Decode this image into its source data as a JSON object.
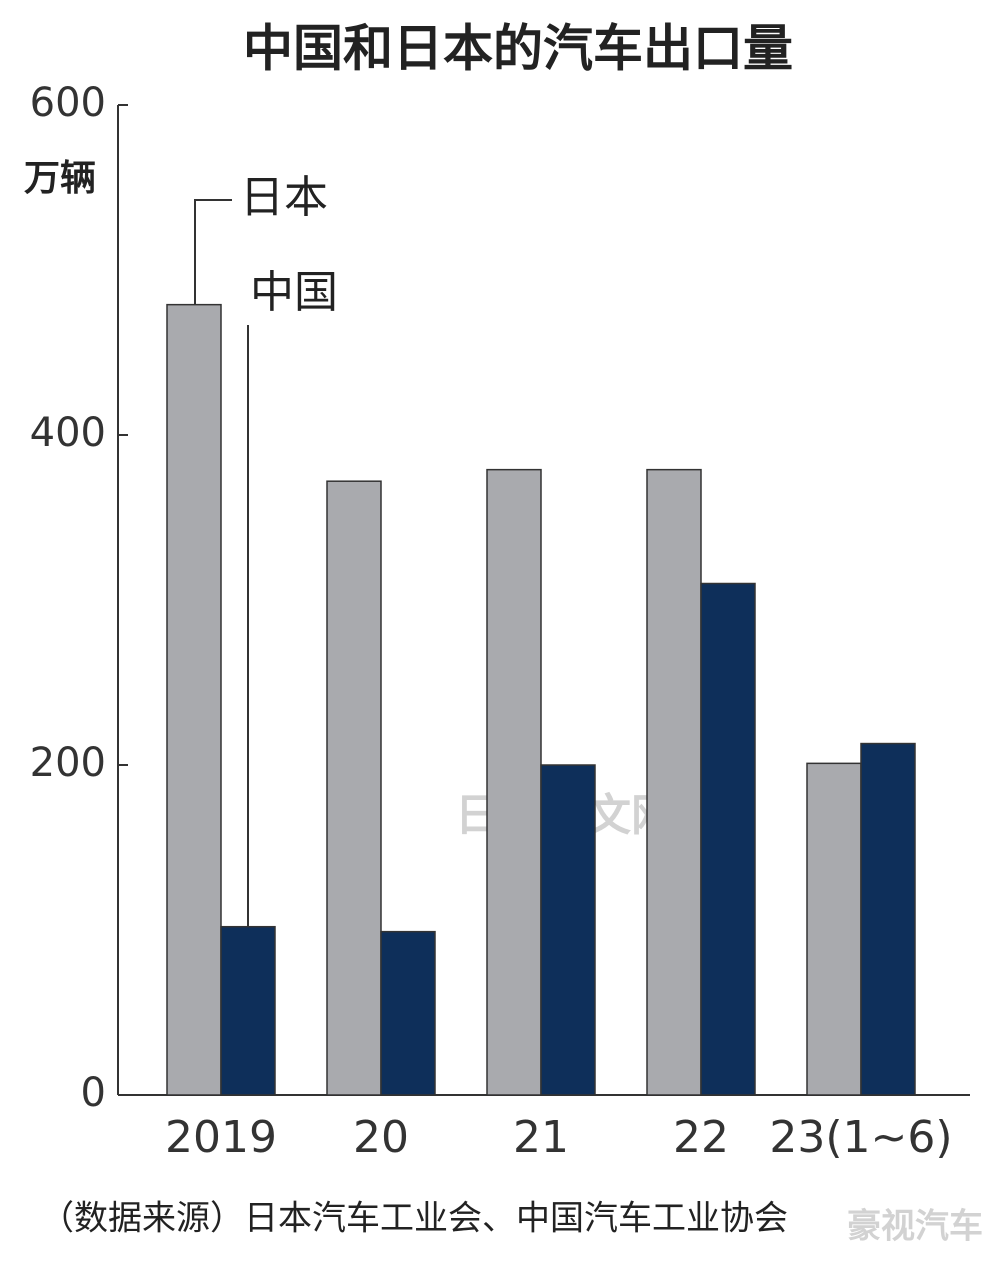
{
  "chart_data": {
    "type": "bar",
    "title": "中国和日本的汽车出口量",
    "y_label": "万辆",
    "categories": [
      "2019",
      "20",
      "21",
      "22",
      "23(1~6)"
    ],
    "series": [
      {
        "name": "日本",
        "color": "#a9aaae",
        "values": [
          479,
          372,
          379,
          379,
          201
        ]
      },
      {
        "name": "中国",
        "color": "#0e2f5a",
        "values": [
          102,
          99,
          200,
          310,
          213
        ]
      }
    ],
    "ylim": [
      0,
      600
    ],
    "yticks": [
      0,
      200,
      400,
      600
    ],
    "source": "（数据来源）日本汽车工业会、中国汽车工业协会",
    "watermarks": [
      "日经中文网",
      "豪视汽车"
    ]
  }
}
